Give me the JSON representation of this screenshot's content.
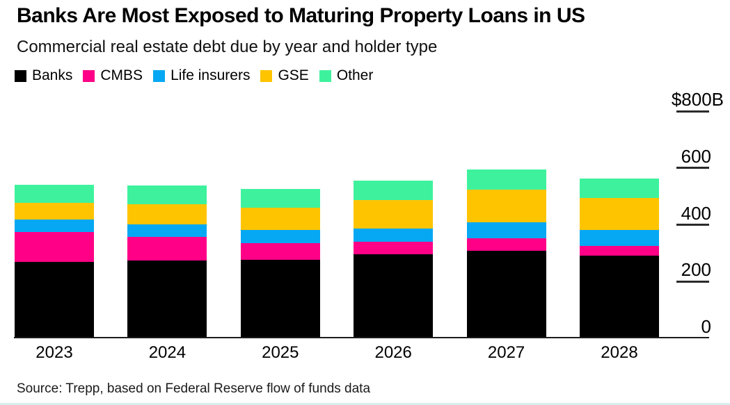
{
  "chart_data": {
    "type": "bar",
    "stacked": true,
    "title": "Banks Are Most Exposed to Maturing Property Loans in US",
    "subtitle": "Commercial real estate debt due by year and holder type",
    "source": "Source: Trepp, based on Federal Reserve flow of funds data",
    "unit": "billion USD",
    "legend_position": "top",
    "grid": false,
    "categories": [
      "2023",
      "2024",
      "2025",
      "2026",
      "2027",
      "2028"
    ],
    "series": [
      {
        "name": "Banks",
        "color": "#000000",
        "values": [
          268,
          275,
          277,
          295,
          309,
          290
        ]
      },
      {
        "name": "CMBS",
        "color": "#FF0087",
        "values": [
          106,
          82,
          58,
          44,
          44,
          36
        ]
      },
      {
        "name": "Life insurers",
        "color": "#06A8F3",
        "values": [
          44,
          44,
          46,
          48,
          55,
          56
        ]
      },
      {
        "name": "GSE",
        "color": "#FFC400",
        "values": [
          58,
          70,
          80,
          99,
          116,
          113
        ]
      },
      {
        "name": "Other",
        "color": "#3EF29D",
        "values": [
          64,
          67,
          65,
          70,
          71,
          68
        ]
      }
    ],
    "y_axis": {
      "position": "right",
      "min": 0,
      "max": 800,
      "ticks": [
        800,
        600,
        400,
        200,
        0
      ],
      "tick_labels": [
        "$800B",
        "600",
        "400",
        "200",
        "0"
      ]
    }
  }
}
